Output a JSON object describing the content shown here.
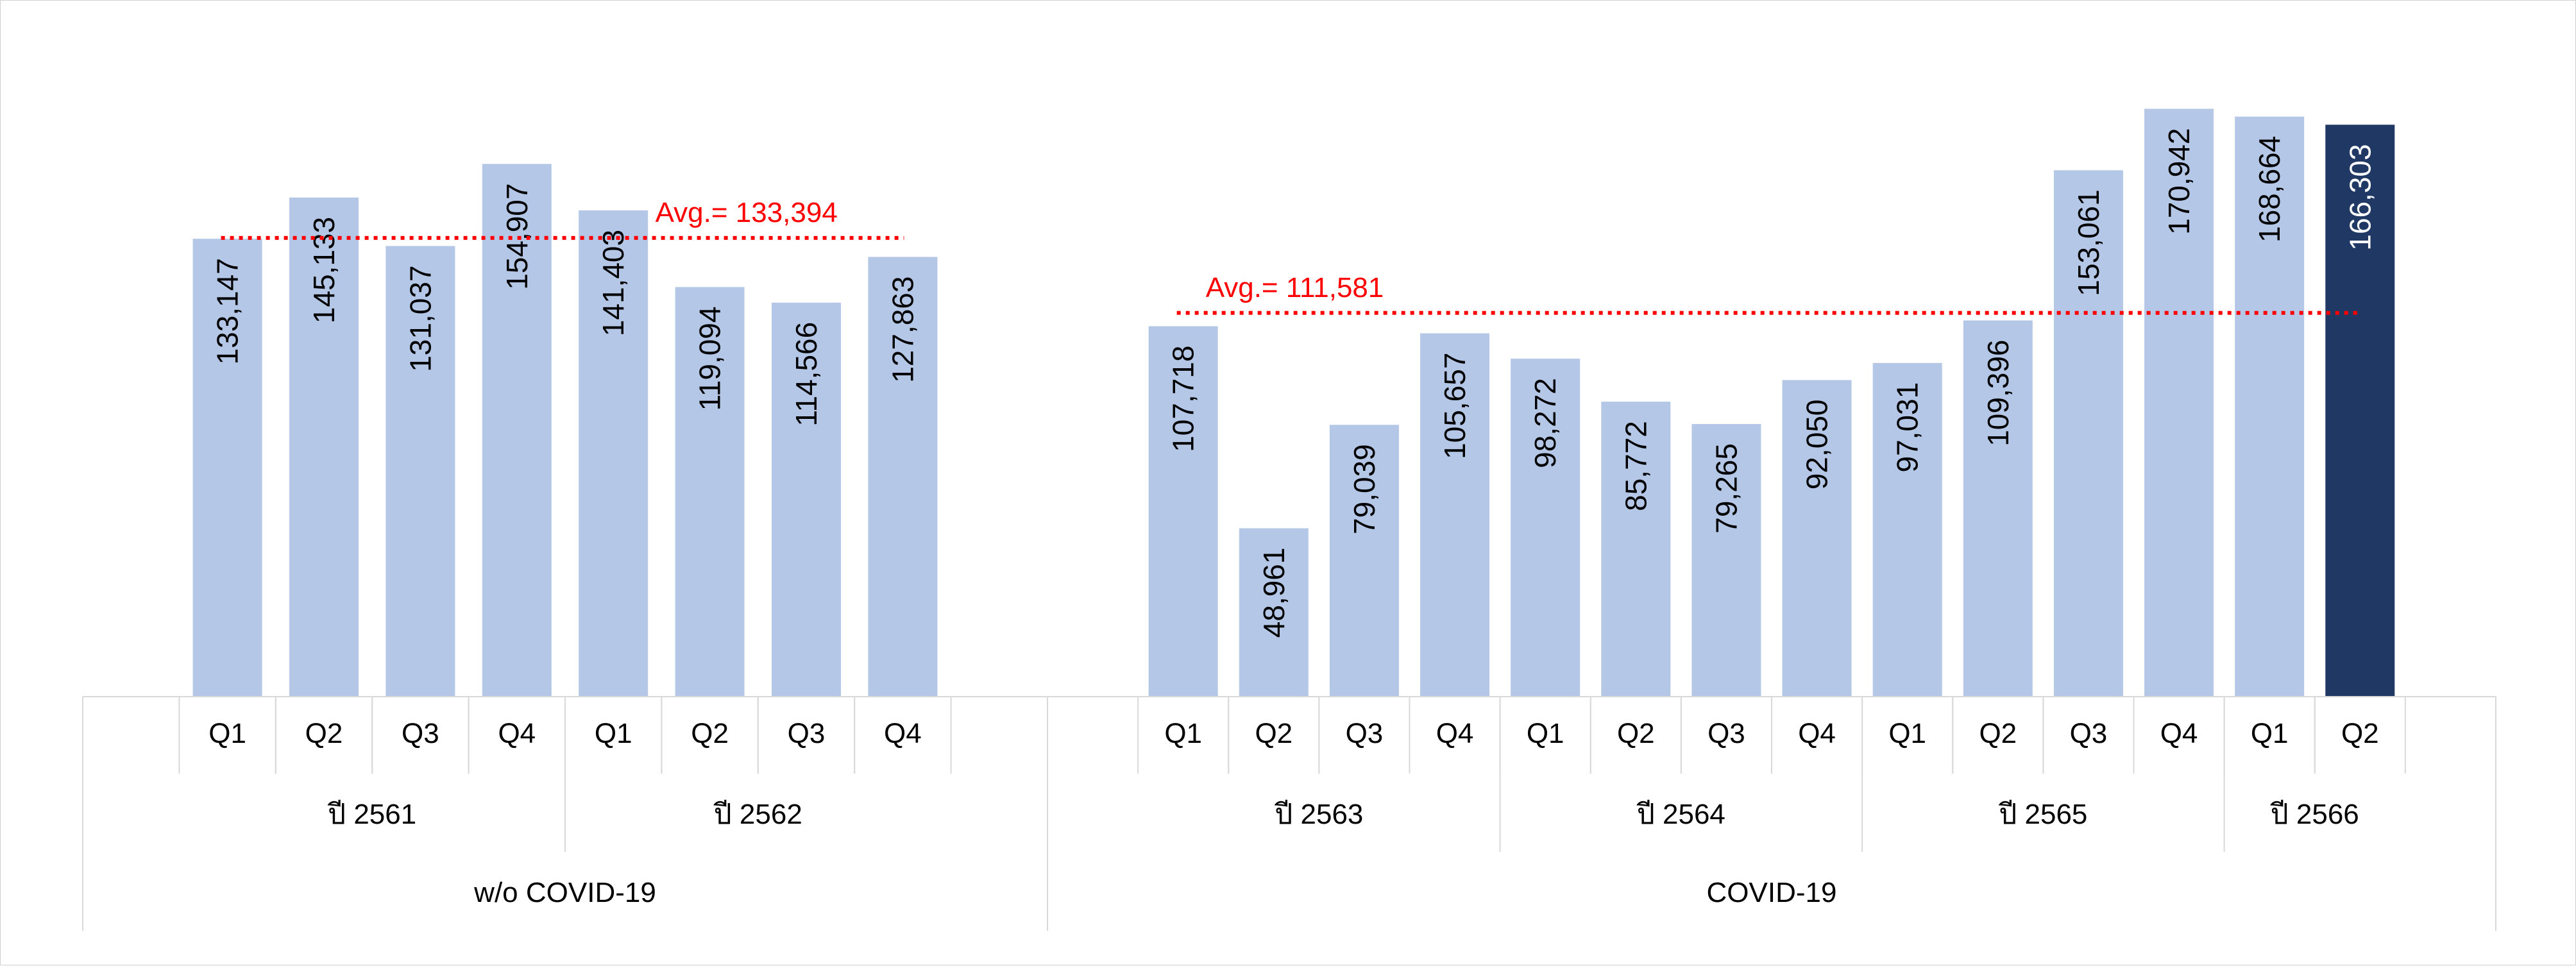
{
  "chart_data": {
    "type": "bar",
    "series": [
      {
        "values": [
          133147,
          145133,
          131037,
          154907,
          141403,
          119094,
          114566,
          127863,
          107718,
          48961,
          79039,
          105657,
          98272,
          85772,
          79265,
          92050,
          97031,
          109396,
          153061,
          170942,
          168664,
          166303
        ]
      }
    ],
    "value_labels": [
      "133,147",
      "145,133",
      "131,037",
      "154,907",
      "141,403",
      "119,094",
      "114,566",
      "127,863",
      "107,718",
      "48,961",
      "79,039",
      "105,657",
      "98,272",
      "85,772",
      "79,265",
      "92,050",
      "97,031",
      "109,396",
      "153,061",
      "170,942",
      "168,664",
      "166,303"
    ],
    "quarters": [
      "Q1",
      "Q2",
      "Q3",
      "Q4",
      "Q1",
      "Q2",
      "Q3",
      "Q4",
      "Q1",
      "Q2",
      "Q3",
      "Q4",
      "Q1",
      "Q2",
      "Q3",
      "Q4",
      "Q1",
      "Q2",
      "Q3",
      "Q4",
      "Q1",
      "Q2"
    ],
    "years": [
      {
        "label": "ปี 2561",
        "count": 4
      },
      {
        "label": "ปี 2562",
        "count": 4
      },
      {
        "label": "ปี 2563",
        "count": 4
      },
      {
        "label": "ปี 2564",
        "count": 4
      },
      {
        "label": "ปี 2565",
        "count": 4
      },
      {
        "label": "ปี 2566",
        "count": 2
      }
    ],
    "periods": [
      {
        "label": "w/o COVID-19",
        "count": 8
      },
      {
        "label": "COVID-19",
        "count": 14
      }
    ],
    "averages": [
      {
        "label": "Avg.= 133,394",
        "value": 133394,
        "period": 0
      },
      {
        "label": "Avg.= 111,581",
        "value": 111581,
        "period": 1
      }
    ],
    "highlight_index": 21,
    "ylim": [
      0,
      180000
    ],
    "grid": false,
    "legend": "none",
    "colors": {
      "bar": "#b4c7e7",
      "highlight_bar": "#203864",
      "average_line": "#ff0000",
      "label_text": "#000000",
      "highlight_label_text": "#ffffff"
    }
  }
}
